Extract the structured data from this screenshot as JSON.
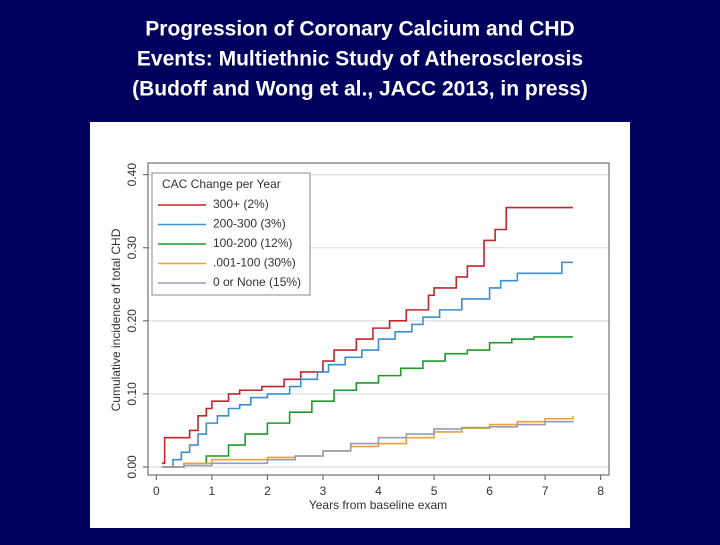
{
  "chart_data": {
    "type": "step",
    "title": [
      "Progression of Coronary Calcium and CHD",
      "Events: Multiethnic Study of Atherosclerosis",
      "(Budoff and Wong et al., JACC 2013, in press)"
    ],
    "x_label": "Years from baseline exam",
    "y_label": "Cumulative incidence of total CHD",
    "legend_title": "CAC Change per Year",
    "legend_position": "upper left",
    "grid": true,
    "xlim": [
      -0.15,
      8.15
    ],
    "ylim": [
      -0.011,
      0.416
    ],
    "xticks": [
      0,
      1,
      2,
      3,
      4,
      5,
      6,
      7,
      8
    ],
    "yticks": [
      {
        "value": 0,
        "label": "0.00"
      },
      {
        "value": 0.1,
        "label": "0.10"
      },
      {
        "value": 0.2,
        "label": "0.20"
      },
      {
        "value": 0.3,
        "label": "0.30"
      },
      {
        "value": 0.4,
        "label": "0.40"
      }
    ],
    "series": [
      {
        "name": "300+ (2%)",
        "color": "#c0272d",
        "x": [
          0.1,
          0.15,
          0.5,
          0.6,
          0.75,
          0.9,
          1,
          1.3,
          1.5,
          1.9,
          2.3,
          2.6,
          3.0,
          3.2,
          3.6,
          3.9,
          4.2,
          4.5,
          4.9,
          5.0,
          5.4,
          5.6,
          5.9,
          6.1,
          6.3,
          7.5
        ],
        "values": [
          0.005,
          0.04,
          0.04,
          0.05,
          0.07,
          0.08,
          0.09,
          0.1,
          0.105,
          0.11,
          0.12,
          0.13,
          0.145,
          0.16,
          0.175,
          0.19,
          0.2,
          0.215,
          0.235,
          0.245,
          0.26,
          0.275,
          0.31,
          0.325,
          0.355,
          0.355
        ]
      },
      {
        "name": "200-300 (3%)",
        "color": "#3a8fd0",
        "x": [
          0.1,
          0.3,
          0.45,
          0.6,
          0.75,
          0.9,
          1.1,
          1.3,
          1.5,
          1.7,
          2.0,
          2.4,
          2.6,
          2.9,
          3.1,
          3.4,
          3.7,
          4.0,
          4.3,
          4.6,
          4.8,
          5.1,
          5.5,
          6.0,
          6.2,
          6.5,
          7.3,
          7.5
        ],
        "values": [
          0,
          0.01,
          0.02,
          0.03,
          0.045,
          0.06,
          0.07,
          0.08,
          0.085,
          0.095,
          0.1,
          0.11,
          0.12,
          0.13,
          0.14,
          0.15,
          0.16,
          0.175,
          0.185,
          0.195,
          0.205,
          0.215,
          0.23,
          0.245,
          0.255,
          0.265,
          0.28,
          0.28
        ]
      },
      {
        "name": "100-200 (12%)",
        "color": "#1f9a2a",
        "x": [
          0.1,
          0.5,
          0.9,
          1.3,
          1.6,
          2.0,
          2.4,
          2.8,
          3.2,
          3.6,
          4.0,
          4.4,
          4.8,
          5.2,
          5.6,
          6.0,
          6.4,
          6.8,
          7.5
        ],
        "values": [
          0,
          0.005,
          0.015,
          0.03,
          0.045,
          0.06,
          0.075,
          0.09,
          0.105,
          0.115,
          0.125,
          0.135,
          0.145,
          0.155,
          0.16,
          0.17,
          0.175,
          0.178,
          0.178
        ]
      },
      {
        "name": ".001-100 (30%)",
        "color": "#f0a030",
        "x": [
          0.1,
          0.5,
          1.0,
          2.0,
          2.5,
          3.0,
          3.5,
          4.0,
          4.5,
          5.0,
          5.5,
          6.0,
          6.5,
          7.0,
          7.5
        ],
        "values": [
          0,
          0.005,
          0.01,
          0.013,
          0.015,
          0.022,
          0.028,
          0.032,
          0.04,
          0.048,
          0.053,
          0.058,
          0.062,
          0.066,
          0.07
        ]
      },
      {
        "name": "0 or None (15%)",
        "color": "#9a9ab8",
        "x": [
          0.1,
          0.5,
          1.0,
          2.0,
          2.5,
          3.0,
          3.5,
          4.0,
          4.5,
          5.0,
          5.5,
          6.0,
          6.5,
          7.0,
          7.5
        ],
        "values": [
          0,
          0.002,
          0.005,
          0.01,
          0.015,
          0.022,
          0.032,
          0.04,
          0.045,
          0.052,
          0.054,
          0.055,
          0.058,
          0.062,
          0.063
        ]
      }
    ]
  }
}
